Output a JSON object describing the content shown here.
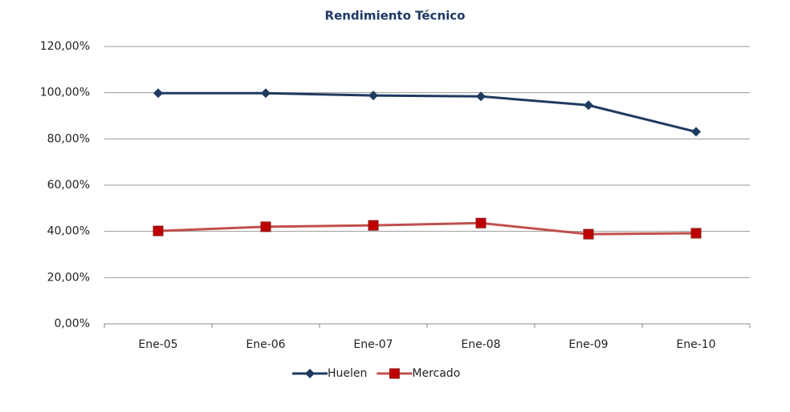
{
  "chart_data": {
    "type": "line",
    "title": "Rendimiento Técnico",
    "categories": [
      "Ene-05",
      "Ene-06",
      "Ene-07",
      "Ene-08",
      "Ene-09",
      "Ene-10"
    ],
    "series": [
      {
        "name": "Huelen",
        "color": "#1f3a60",
        "values": [
          99.8,
          99.8,
          98.8,
          98.4,
          94.6,
          83.1
        ]
      },
      {
        "name": "Mercado",
        "color": "#c0504d",
        "values": [
          40.2,
          42.0,
          42.6,
          43.6,
          38.8,
          39.2
        ]
      }
    ],
    "ylim": [
      0,
      120
    ],
    "yticks": [
      {
        "value": 0,
        "label": "0,00%"
      },
      {
        "value": 20,
        "label": "20,00%"
      },
      {
        "value": 40,
        "label": "40,00%"
      },
      {
        "value": 60,
        "label": "60,00%"
      },
      {
        "value": 80,
        "label": "80,00%"
      },
      {
        "value": 100,
        "label": "100,00%"
      },
      {
        "value": 120,
        "label": "120,00%"
      }
    ],
    "grid": true,
    "legend": "bottom"
  }
}
